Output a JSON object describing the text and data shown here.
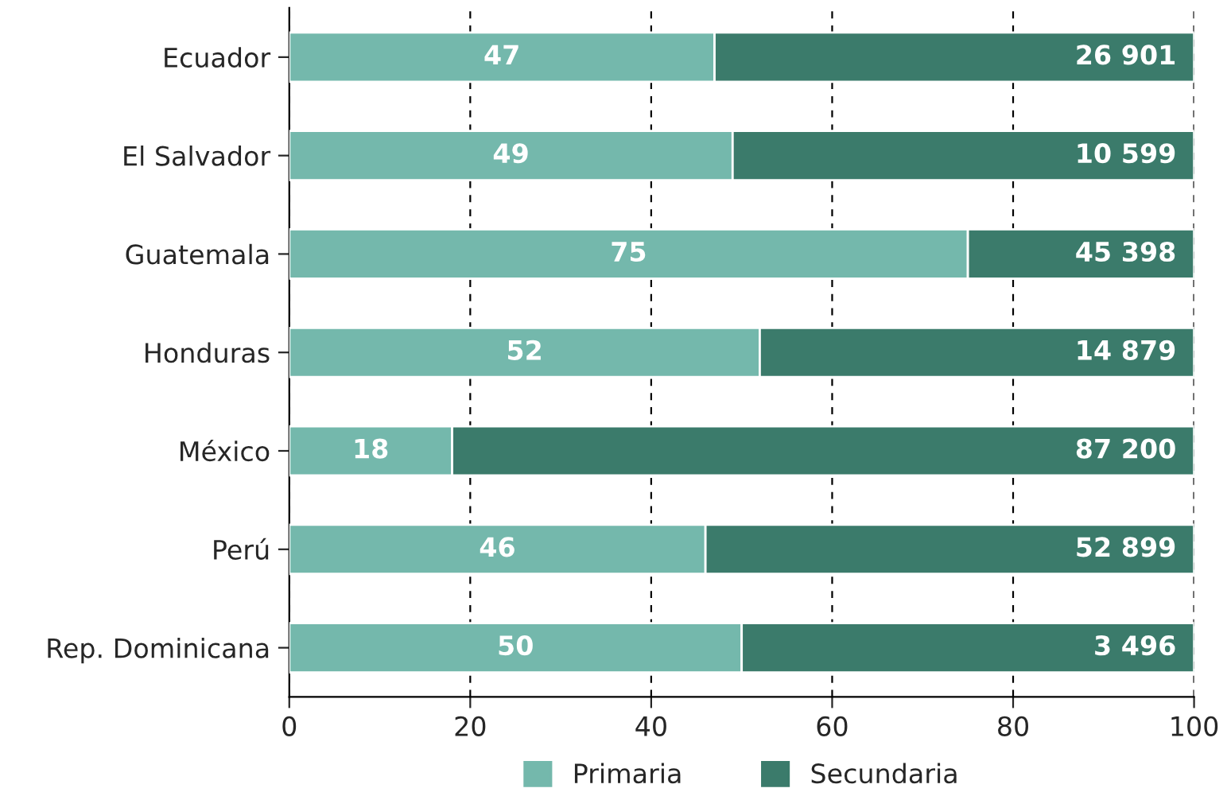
{
  "chart_data": {
    "type": "bar",
    "orientation": "horizontal",
    "stacked": true,
    "categories": [
      "Ecuador",
      "El Salvador",
      "Guatemala",
      "Honduras",
      "México",
      "Perú",
      "Rep. Dominicana"
    ],
    "series": [
      {
        "name": "Primaria",
        "color": "#74b8ac",
        "values": [
          47,
          49,
          75,
          52,
          18,
          46,
          50
        ],
        "value_labels": [
          "47",
          "49",
          "75",
          "52",
          "18",
          "46",
          "50"
        ]
      },
      {
        "name": "Secundaria",
        "color": "#3b7b6b",
        "values": [
          53,
          51,
          25,
          48,
          82,
          54,
          50
        ]
      }
    ],
    "annotations": [
      "26 901",
      "10 599",
      "45 398",
      "14 879",
      "87 200",
      "52 899",
      "3 496"
    ],
    "xlim": [
      0,
      100
    ],
    "xticks": [
      0,
      20,
      40,
      60,
      80,
      100
    ],
    "grid": "x",
    "legend": "bottom"
  }
}
